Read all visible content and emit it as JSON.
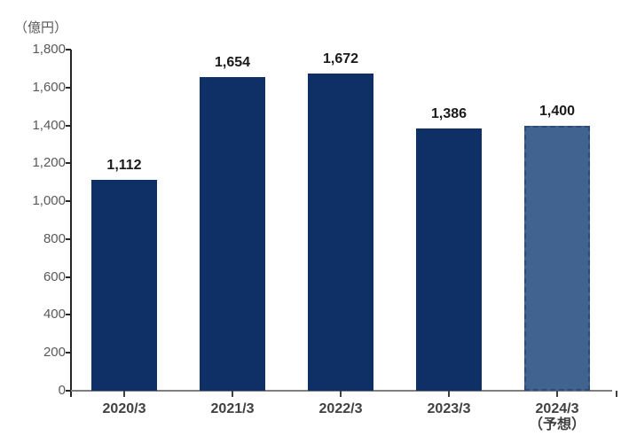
{
  "chart_data": {
    "type": "bar",
    "unit_label": "（億円）",
    "categories": [
      "2020/3",
      "2021/3",
      "2022/3",
      "2023/3",
      "2024/3"
    ],
    "category_sublabels": [
      null,
      null,
      null,
      null,
      "（予想）"
    ],
    "values": [
      1112,
      1654,
      1672,
      1386,
      1400
    ],
    "value_labels": [
      "1,112",
      "1,654",
      "1,672",
      "1,386",
      "1,400"
    ],
    "forecast_index": 4,
    "ylim": [
      0,
      1800
    ],
    "ytick_interval": 200,
    "ytick_values": [
      0,
      200,
      400,
      600,
      800,
      1000,
      1200,
      1400,
      1600,
      1800
    ],
    "ytick_labels": [
      "0",
      "200",
      "400",
      "600",
      "800",
      "1,000",
      "1,200",
      "1,400",
      "1,600",
      "1,800"
    ],
    "grid": false,
    "legend": "none",
    "colors": {
      "bar": "#0f3067",
      "forecast_bar_fill": "#41638f",
      "forecast_bar_border": "#2e4a77",
      "y_axis": "#262626",
      "x_axis": "#7f7f7f",
      "tick_label": "#595959",
      "value_label": "#1a1a1a",
      "category_label": "#404040"
    }
  }
}
